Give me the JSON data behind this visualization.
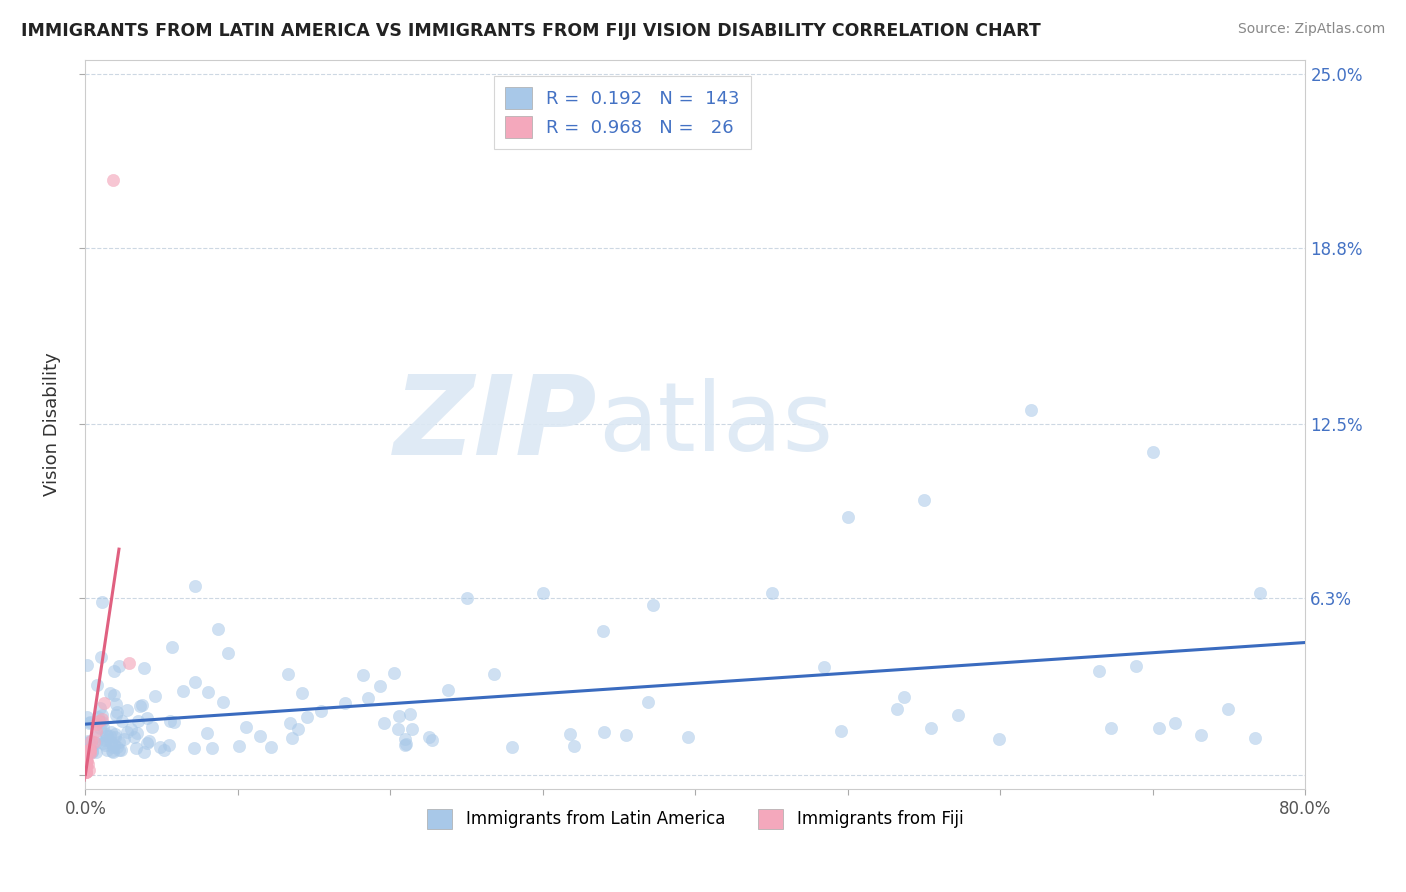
{
  "title": "IMMIGRANTS FROM LATIN AMERICA VS IMMIGRANTS FROM FIJI VISION DISABILITY CORRELATION CHART",
  "source": "Source: ZipAtlas.com",
  "ylabel": "Vision Disability",
  "x_min": 0.0,
  "x_max": 0.8,
  "y_min": -0.005,
  "y_max": 0.255,
  "x_ticks": [
    0.0,
    0.1,
    0.2,
    0.3,
    0.4,
    0.5,
    0.6,
    0.7,
    0.8
  ],
  "x_tick_labels": [
    "0.0%",
    "",
    "",
    "",
    "",
    "",
    "",
    "",
    "80.0%"
  ],
  "y_ticks": [
    0.0,
    0.063,
    0.125,
    0.188,
    0.25
  ],
  "y_tick_labels": [
    "",
    "6.3%",
    "12.5%",
    "18.8%",
    "25.0%"
  ],
  "scatter_latin_color": "#a8c8e8",
  "scatter_fiji_color": "#f4a8bc",
  "line_latin_color": "#3a6bbf",
  "line_fiji_color": "#e06080",
  "background_color": "#ffffff",
  "grid_color": "#c8d4e0",
  "watermark_color": "#dce8f4",
  "R_latin": 0.192,
  "N_latin": 143,
  "R_fiji": 0.968,
  "N_fiji": 26,
  "legend_label_latin": "Immigrants from Latin America",
  "legend_label_fiji": "Immigrants from Fiji",
  "legend_R_latin": "R =  0.192   N =  143",
  "legend_R_fiji": "R =  0.968   N =   26"
}
